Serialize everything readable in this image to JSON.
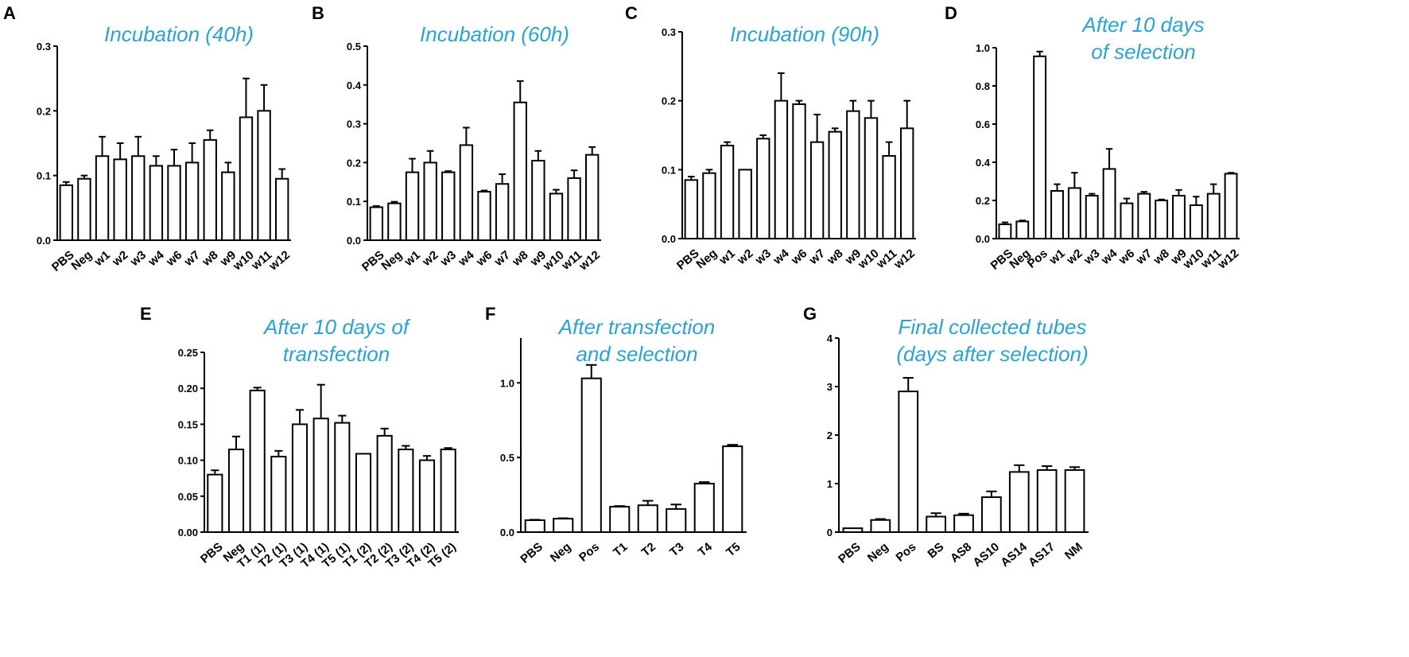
{
  "chart_data": [
    {
      "panel": "A",
      "type": "bar",
      "title": [
        "Incubation (40h)"
      ],
      "xlabel": "",
      "ylabel": "",
      "ylim": [
        0,
        0.3
      ],
      "yticks": [
        "0.0",
        "0.1",
        "0.2",
        "0.3"
      ],
      "ytick_values": [
        0,
        0.1,
        0.2,
        0.3
      ],
      "categories": [
        "PBS",
        "Neg",
        "w1",
        "w2",
        "w3",
        "w4",
        "w6",
        "w7",
        "w8",
        "w9",
        "w10",
        "w11",
        "w12"
      ],
      "values": [
        0.085,
        0.095,
        0.13,
        0.125,
        0.13,
        0.115,
        0.115,
        0.12,
        0.155,
        0.105,
        0.19,
        0.2,
        0.095
      ],
      "errors": [
        0.005,
        0.005,
        0.03,
        0.025,
        0.03,
        0.015,
        0.025,
        0.03,
        0.015,
        0.015,
        0.06,
        0.04,
        0.015
      ]
    },
    {
      "panel": "B",
      "type": "bar",
      "title": [
        "Incubation (60h)"
      ],
      "xlabel": "",
      "ylabel": "",
      "ylim": [
        0,
        0.5
      ],
      "yticks": [
        "0.0",
        "0.1",
        "0.2",
        "0.3",
        "0.4",
        "0.5"
      ],
      "ytick_values": [
        0,
        0.1,
        0.2,
        0.3,
        0.4,
        0.5
      ],
      "categories": [
        "PBS",
        "Neg",
        "w1",
        "w2",
        "w3",
        "w4",
        "w6",
        "w7",
        "w8",
        "w9",
        "w10",
        "w11",
        "w12"
      ],
      "values": [
        0.085,
        0.095,
        0.175,
        0.2,
        0.175,
        0.245,
        0.125,
        0.145,
        0.355,
        0.205,
        0.12,
        0.16,
        0.22
      ],
      "errors": [
        0.003,
        0.004,
        0.035,
        0.03,
        0.003,
        0.045,
        0.003,
        0.025,
        0.055,
        0.025,
        0.01,
        0.02,
        0.02
      ]
    },
    {
      "panel": "C",
      "type": "bar",
      "title": [
        "Incubation (90h)"
      ],
      "xlabel": "",
      "ylabel": "",
      "ylim": [
        0,
        0.3
      ],
      "yticks": [
        "0.0",
        "0.1",
        "0.2",
        "0.3"
      ],
      "ytick_values": [
        0,
        0.1,
        0.2,
        0.3
      ],
      "categories": [
        "PBS",
        "Neg",
        "w1",
        "w2",
        "w3",
        "w4",
        "w6",
        "w7",
        "w8",
        "w9",
        "w10",
        "w11",
        "w12"
      ],
      "values": [
        0.085,
        0.095,
        0.135,
        0.1,
        0.145,
        0.2,
        0.195,
        0.14,
        0.155,
        0.185,
        0.175,
        0.12,
        0.16
      ],
      "errors": [
        0.005,
        0.005,
        0.005,
        0.0,
        0.005,
        0.04,
        0.005,
        0.04,
        0.005,
        0.015,
        0.025,
        0.02,
        0.04
      ]
    },
    {
      "panel": "D",
      "type": "bar",
      "title": [
        "After 10 days",
        "of selection"
      ],
      "xlabel": "",
      "ylabel": "",
      "ylim": [
        0,
        1.0
      ],
      "yticks": [
        "0.0",
        "0.2",
        "0.4",
        "0.6",
        "0.8",
        "1.0"
      ],
      "ytick_values": [
        0,
        0.2,
        0.4,
        0.6,
        0.8,
        1.0
      ],
      "categories": [
        "PBS",
        "Neg",
        "Pos",
        "w1",
        "w2",
        "w3",
        "w4",
        "w6",
        "w7",
        "w8",
        "w9",
        "w10",
        "w11",
        "w12"
      ],
      "values": [
        0.075,
        0.09,
        0.955,
        0.25,
        0.265,
        0.225,
        0.365,
        0.185,
        0.235,
        0.2,
        0.225,
        0.175,
        0.235,
        0.34
      ],
      "errors": [
        0.01,
        0.005,
        0.025,
        0.035,
        0.08,
        0.01,
        0.105,
        0.025,
        0.01,
        0.005,
        0.03,
        0.045,
        0.05,
        0.005
      ]
    },
    {
      "panel": "E",
      "type": "bar",
      "title": [
        "After 10 days of",
        "transfection"
      ],
      "xlabel": "",
      "ylabel": "",
      "ylim": [
        0,
        0.25
      ],
      "yticks": [
        "0.00",
        "0.05",
        "0.10",
        "0.15",
        "0.20",
        "0.25"
      ],
      "ytick_values": [
        0,
        0.05,
        0.1,
        0.15,
        0.2,
        0.25
      ],
      "categories": [
        "PBS",
        "Neg",
        "T1 (1)",
        "T2 (1)",
        "T3 (1)",
        "T4 (1)",
        "T5 (1)",
        "T1 (2)",
        "T2 (2)",
        "T3 (2)",
        "T4 (2)",
        "T5 (2)"
      ],
      "values": [
        0.08,
        0.115,
        0.197,
        0.105,
        0.15,
        0.158,
        0.152,
        0.109,
        0.134,
        0.115,
        0.1,
        0.115
      ],
      "errors": [
        0.006,
        0.018,
        0.004,
        0.008,
        0.02,
        0.047,
        0.01,
        0.0,
        0.01,
        0.005,
        0.006,
        0.002
      ]
    },
    {
      "panel": "F",
      "type": "bar",
      "title": [
        "After transfection",
        "and selection"
      ],
      "xlabel": "",
      "ylabel": "",
      "ylim": [
        0,
        1.3
      ],
      "yticks": [
        "0.0",
        "0.5",
        "1.0"
      ],
      "ytick_values": [
        0,
        0.5,
        1.0
      ],
      "categories": [
        "PBS",
        "Neg",
        "Pos",
        "T1",
        "T2",
        "T3",
        "T4",
        "T5"
      ],
      "values": [
        0.08,
        0.09,
        1.03,
        0.17,
        0.18,
        0.155,
        0.325,
        0.575
      ],
      "errors": [
        0.003,
        0.003,
        0.09,
        0.005,
        0.03,
        0.03,
        0.01,
        0.01
      ]
    },
    {
      "panel": "G",
      "type": "bar",
      "title": [
        "Final collected tubes",
        "(days after selection)"
      ],
      "xlabel": "",
      "ylabel": "",
      "ylim": [
        0,
        4
      ],
      "yticks": [
        "0",
        "1",
        "2",
        "3",
        "4"
      ],
      "ytick_values": [
        0,
        1,
        2,
        3,
        4
      ],
      "categories": [
        "PBS",
        "Neg",
        "Pos",
        "BS",
        "AS8",
        "AS10",
        "AS14",
        "AS17",
        "NM"
      ],
      "values": [
        0.08,
        0.25,
        2.9,
        0.32,
        0.35,
        0.72,
        1.24,
        1.28,
        1.28
      ],
      "errors": [
        0.0,
        0.02,
        0.28,
        0.07,
        0.03,
        0.12,
        0.14,
        0.08,
        0.06
      ]
    }
  ]
}
